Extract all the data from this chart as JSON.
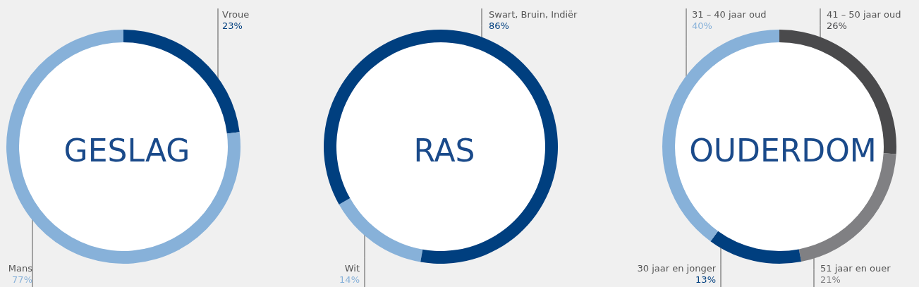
{
  "chart_data": [
    {
      "type": "donut",
      "title": "GESLAG",
      "categories": [
        "Vroue",
        "Mans"
      ],
      "values": [
        23,
        77
      ],
      "colors": [
        "#003f7f",
        "#87b1d9"
      ],
      "value_labels": [
        "23%",
        "77%"
      ]
    },
    {
      "type": "donut",
      "title": "RAS",
      "categories": [
        "Wit",
        "Swart, Bruin, Indiër"
      ],
      "values": [
        14,
        86
      ],
      "colors": [
        "#87b1d9",
        "#003f7f"
      ],
      "value_labels": [
        "14%",
        "86%"
      ]
    },
    {
      "type": "donut",
      "title": "OUDERDOM",
      "categories": [
        "41 – 50 jaar oud",
        "51 jaar en ouer",
        "30 jaar en jonger",
        "31 – 40 jaar oud"
      ],
      "values": [
        26,
        21,
        13,
        40
      ],
      "colors": [
        "#4a4a4c",
        "#808083",
        "#003f7f",
        "#87b1d9"
      ],
      "value_labels": [
        "26%",
        "21%",
        "13%",
        "40%"
      ]
    }
  ]
}
